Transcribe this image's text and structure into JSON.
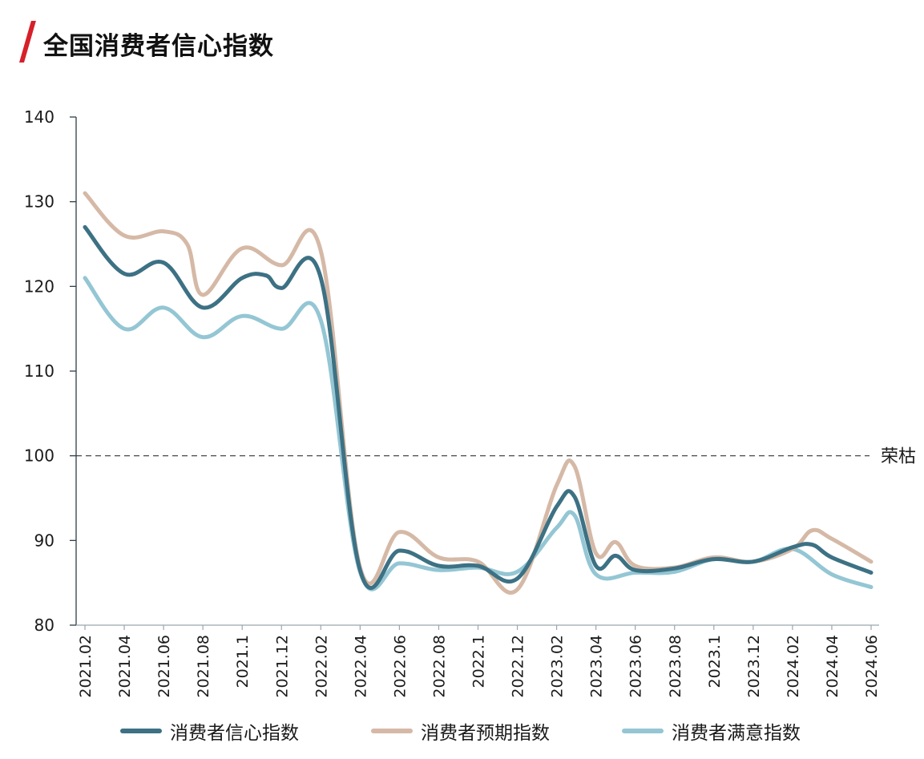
{
  "title": "全国消费者信心指数",
  "colors": {
    "accent": "#d6202a",
    "axis": "#2e3e47",
    "reference_line": "#333333"
  },
  "chart_data": {
    "type": "line",
    "title": "全国消费者信心指数",
    "xlabel": "",
    "ylabel": "",
    "ylim": [
      80,
      140
    ],
    "yticks": [
      80,
      90,
      100,
      110,
      120,
      130,
      140
    ],
    "grid": false,
    "legend_position": "bottom",
    "categories": [
      "2021.02",
      "2021.04",
      "2021.06",
      "2021.08",
      "2021.1",
      "2021.12",
      "2022.02",
      "2022.04",
      "2022.06",
      "2022.08",
      "2022.1",
      "2022.12",
      "2023.02",
      "2023.04",
      "2023.06",
      "2023.08",
      "2023.1",
      "2023.12",
      "2024.02",
      "2024.04",
      "2024.06"
    ],
    "reference_line": {
      "value": 100,
      "label": "荣枯",
      "style": "dashed"
    },
    "series": [
      {
        "name": "消费者信心指数",
        "color": "#3d7184",
        "values": [
          127.0,
          121.5,
          122.8,
          117.5,
          121.0,
          119.8,
          121.0,
          86.5,
          88.8,
          87.0,
          87.0,
          85.5,
          94.0,
          87.0,
          86.5,
          86.7,
          87.8,
          87.5,
          89.2,
          88.0,
          86.2
        ],
        "extra": [
          {
            "pos": 4.6,
            "value": 121.3
          },
          {
            "pos": 12.45,
            "value": 95.2
          },
          {
            "pos": 13.5,
            "value": 88.2
          },
          {
            "pos": 18.5,
            "value": 89.5
          }
        ]
      },
      {
        "name": "消费者预期指数",
        "color": "#d5b9a6",
        "values": [
          131.0,
          126.0,
          126.5,
          119.0,
          124.5,
          122.5,
          124.2,
          86.8,
          91.0,
          88.0,
          87.5,
          84.2,
          96.5,
          88.5,
          87.0,
          86.8,
          88.0,
          87.5,
          89.0,
          90.2,
          87.5
        ],
        "extra": [
          {
            "pos": 2.6,
            "value": 125.0
          },
          {
            "pos": 12.45,
            "value": 98.8
          },
          {
            "pos": 13.5,
            "value": 89.8
          },
          {
            "pos": 18.5,
            "value": 91.2
          }
        ]
      },
      {
        "name": "消费者满意指数",
        "color": "#94c6d4",
        "values": [
          121.0,
          115.0,
          117.5,
          114.0,
          116.5,
          115.0,
          116.0,
          86.3,
          87.3,
          86.5,
          86.8,
          86.3,
          91.5,
          86.0,
          86.2,
          86.3,
          87.8,
          87.5,
          89.0,
          86.0,
          84.5
        ],
        "extra": [
          {
            "pos": 12.45,
            "value": 93.0
          }
        ]
      }
    ]
  }
}
